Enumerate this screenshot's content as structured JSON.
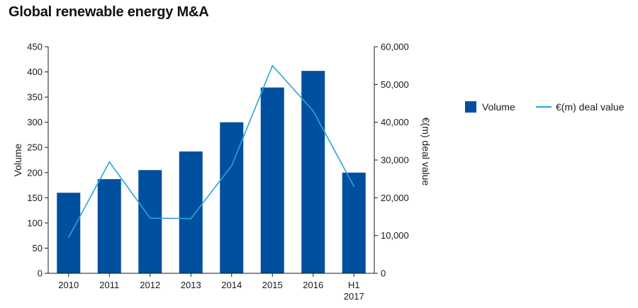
{
  "chart_data": {
    "type": "bar",
    "title": "Global renewable energy M&A",
    "categories": [
      [
        "2010"
      ],
      [
        "2011"
      ],
      [
        "2012"
      ],
      [
        "2013"
      ],
      [
        "2014"
      ],
      [
        "2015"
      ],
      [
        "2016"
      ],
      [
        "H1",
        "2017"
      ]
    ],
    "series": [
      {
        "name": "Volume",
        "type": "bar",
        "axis": "left",
        "values": [
          160,
          187,
          205,
          242,
          300,
          369,
          402,
          200
        ],
        "color": "#004f9f"
      },
      {
        "name": "€(m) deal value",
        "type": "line",
        "axis": "right",
        "values": [
          9500,
          29500,
          14600,
          14500,
          28500,
          55000,
          43000,
          23000
        ],
        "color": "#2aa4d8"
      }
    ],
    "ylabel": "Volume",
    "ylim": [
      0,
      450
    ],
    "yticks": [
      "0",
      "50",
      "100",
      "150",
      "200",
      "250",
      "300",
      "350",
      "400",
      "450"
    ],
    "y2label": "€(m) deal value",
    "y2lim": [
      0,
      60000
    ],
    "y2ticks": [
      "0",
      "10,000",
      "20,000",
      "30,000",
      "40,000",
      "50,000",
      "60,000"
    ],
    "legend_position": "right",
    "grid": false
  }
}
